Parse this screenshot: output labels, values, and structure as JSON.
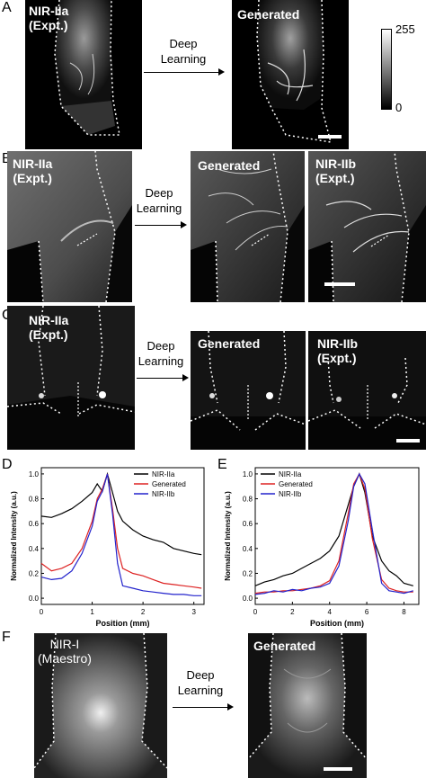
{
  "panels": {
    "A": {
      "letter": "A",
      "left_label": "NIR-IIa\n(Expt.)",
      "arrow_label": "Deep\nLearning",
      "right_label": "Generated",
      "colorbar": {
        "max": "255",
        "min": "0"
      }
    },
    "B": {
      "letter": "B",
      "left_label": "NIR-IIa\n(Expt.)",
      "arrow_label": "Deep\nLearning",
      "mid_label": "Generated",
      "right_label": "NIR-IIb\n(Expt.)"
    },
    "C": {
      "letter": "C",
      "left_label": "NIR-IIa\n(Expt.)",
      "arrow_label": "Deep\nLearning",
      "mid_label": "Generated",
      "right_label": "NIR-IIb\n(Expt.)"
    },
    "D": {
      "letter": "D"
    },
    "E": {
      "letter": "E"
    },
    "F": {
      "letter": "F",
      "left_label": "NIR-I\n(Maestro)",
      "arrow_label": "Deep\nLearning",
      "right_label": "Generated"
    }
  },
  "chart_data": [
    {
      "type": "line",
      "panel": "D",
      "xlabel": "Position (mm)",
      "ylabel": "Normalized Intensity (a.u.)",
      "xlim": [
        0,
        3.2
      ],
      "ylim": [
        -0.05,
        1.05
      ],
      "xticks": [
        "0",
        "1",
        "2",
        "3"
      ],
      "yticks": [
        "0.0",
        "0.2",
        "0.4",
        "0.6",
        "0.8",
        "1.0"
      ],
      "legend_position": "top-right",
      "series": [
        {
          "name": "NIR-IIa",
          "color": "#000000",
          "x": [
            0,
            0.2,
            0.4,
            0.6,
            0.8,
            1.0,
            1.1,
            1.2,
            1.3,
            1.4,
            1.5,
            1.6,
            1.8,
            2.0,
            2.2,
            2.4,
            2.6,
            2.8,
            3.0,
            3.15
          ],
          "y": [
            0.66,
            0.65,
            0.68,
            0.72,
            0.78,
            0.85,
            0.92,
            0.86,
            1.0,
            0.85,
            0.7,
            0.62,
            0.55,
            0.5,
            0.47,
            0.45,
            0.4,
            0.38,
            0.36,
            0.35
          ]
        },
        {
          "name": "Generated",
          "color": "#dd2222",
          "x": [
            0,
            0.2,
            0.4,
            0.6,
            0.8,
            1.0,
            1.1,
            1.2,
            1.3,
            1.4,
            1.5,
            1.6,
            1.8,
            2.0,
            2.2,
            2.4,
            2.6,
            2.8,
            3.0,
            3.15
          ],
          "y": [
            0.28,
            0.22,
            0.24,
            0.28,
            0.4,
            0.62,
            0.8,
            0.88,
            1.0,
            0.72,
            0.4,
            0.24,
            0.2,
            0.18,
            0.15,
            0.12,
            0.11,
            0.1,
            0.09,
            0.08
          ]
        },
        {
          "name": "NIR-IIb",
          "color": "#2222cc",
          "x": [
            0,
            0.2,
            0.4,
            0.6,
            0.8,
            1.0,
            1.1,
            1.2,
            1.3,
            1.4,
            1.5,
            1.6,
            1.8,
            2.0,
            2.2,
            2.4,
            2.6,
            2.8,
            3.0,
            3.15
          ],
          "y": [
            0.17,
            0.15,
            0.16,
            0.22,
            0.36,
            0.58,
            0.78,
            0.86,
            1.0,
            0.68,
            0.28,
            0.1,
            0.08,
            0.06,
            0.05,
            0.04,
            0.03,
            0.03,
            0.02,
            0.02
          ]
        }
      ]
    },
    {
      "type": "line",
      "panel": "E",
      "xlabel": "Position (mm)",
      "ylabel": "Normalized Intensity (a.u.)",
      "xlim": [
        0,
        8.8
      ],
      "ylim": [
        -0.05,
        1.05
      ],
      "xticks": [
        "0",
        "2",
        "4",
        "6",
        "8"
      ],
      "yticks": [
        "0.0",
        "0.2",
        "0.4",
        "0.6",
        "0.8",
        "1.0"
      ],
      "legend_position": "top-left",
      "series": [
        {
          "name": "NIR-IIa",
          "color": "#000000",
          "x": [
            0,
            0.5,
            1,
            1.5,
            2,
            2.5,
            3,
            3.5,
            4,
            4.5,
            5,
            5.3,
            5.6,
            5.9,
            6.3,
            6.8,
            7.2,
            7.6,
            8,
            8.5
          ],
          "y": [
            0.1,
            0.13,
            0.15,
            0.18,
            0.2,
            0.24,
            0.28,
            0.32,
            0.38,
            0.5,
            0.75,
            0.9,
            1.0,
            0.85,
            0.5,
            0.3,
            0.22,
            0.18,
            0.12,
            0.1
          ]
        },
        {
          "name": "Generated",
          "color": "#dd2222",
          "x": [
            0,
            0.5,
            1,
            1.5,
            2,
            2.5,
            3,
            3.5,
            4,
            4.5,
            5,
            5.3,
            5.6,
            5.9,
            6.3,
            6.8,
            7.2,
            7.6,
            8,
            8.5
          ],
          "y": [
            0.04,
            0.05,
            0.05,
            0.06,
            0.06,
            0.07,
            0.08,
            0.1,
            0.14,
            0.3,
            0.68,
            0.92,
            1.0,
            0.88,
            0.48,
            0.15,
            0.08,
            0.06,
            0.05,
            0.05
          ]
        },
        {
          "name": "NIR-IIb",
          "color": "#2222cc",
          "x": [
            0,
            0.5,
            1,
            1.5,
            2,
            2.5,
            3,
            3.5,
            4,
            4.5,
            5,
            5.3,
            5.6,
            5.9,
            6.3,
            6.8,
            7.2,
            7.6,
            8,
            8.5
          ],
          "y": [
            0.03,
            0.04,
            0.06,
            0.05,
            0.07,
            0.06,
            0.08,
            0.09,
            0.12,
            0.26,
            0.62,
            0.9,
            1.0,
            0.92,
            0.55,
            0.12,
            0.06,
            0.05,
            0.04,
            0.06
          ]
        }
      ]
    }
  ]
}
